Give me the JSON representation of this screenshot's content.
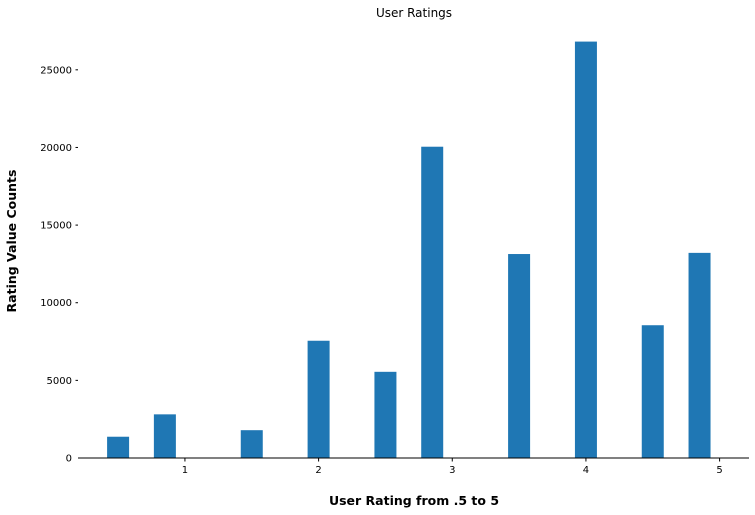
{
  "chart_data": {
    "type": "bar",
    "title": "User Ratings",
    "xlabel": "User Rating from .5 to 5",
    "ylabel": "Rating Value Counts",
    "x": [
      0.5,
      0.85,
      1.5,
      2.0,
      2.5,
      2.85,
      3.5,
      4.0,
      4.5,
      4.85
    ],
    "values": [
      1370,
      2811,
      1791,
      7551,
      5550,
      20047,
      13136,
      26818,
      8551,
      13211
    ],
    "xticks": [
      1,
      2,
      3,
      4,
      5
    ],
    "yticks": [
      0,
      5000,
      10000,
      15000,
      20000,
      25000
    ],
    "xlim": [
      0.2,
      5.22
    ],
    "ylim": [
      0,
      27500
    ],
    "bar_color": "#1f77b4",
    "grid": false
  }
}
